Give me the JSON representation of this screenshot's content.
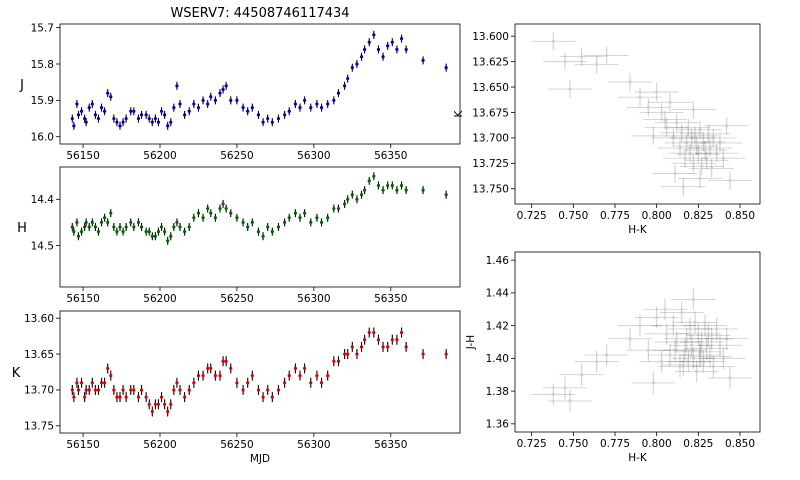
{
  "figure": {
    "title": "WSERV7: 44508746117434"
  },
  "colors": {
    "J": "#0000bb",
    "H": "#006400",
    "K": "#dd0000",
    "errbar": "#000000",
    "cc_point": "#000000"
  },
  "chart_data": [
    {
      "id": "j-lightcurve",
      "type": "scatter",
      "ylabel": "J",
      "xlabel": "",
      "xlim": [
        56135,
        56395
      ],
      "ylim": [
        16.02,
        15.69
      ],
      "y_inverted": true,
      "xticks": [
        56150,
        56200,
        56250,
        56300,
        56350
      ],
      "yticks": [
        15.7,
        15.8,
        15.9,
        16.0
      ],
      "xtick_labels": [
        "56150",
        "56200",
        "56250",
        "56300",
        "56350"
      ],
      "ytick_labels": [
        "15.7",
        "15.8",
        "15.9",
        "16.0"
      ],
      "color": "#0000bb",
      "points": []
    },
    {
      "id": "h-lightcurve",
      "type": "scatter",
      "ylabel": "H",
      "xlabel": "",
      "xlim": [
        56135,
        56395
      ],
      "ylim": [
        14.59,
        14.33
      ],
      "y_inverted": true,
      "xticks": [
        56150,
        56200,
        56250,
        56300,
        56350
      ],
      "yticks": [
        14.4,
        14.5
      ],
      "xtick_labels": [
        "56150",
        "56200",
        "56250",
        "56300",
        "56350"
      ],
      "ytick_labels": [
        "14.4",
        "14.5"
      ],
      "color": "#006400",
      "points": []
    },
    {
      "id": "k-lightcurve",
      "type": "scatter",
      "ylabel": "K",
      "xlabel": "MJD",
      "xlim": [
        56135,
        56395
      ],
      "ylim": [
        13.76,
        13.59
      ],
      "y_inverted": true,
      "xticks": [
        56150,
        56200,
        56250,
        56300,
        56350
      ],
      "yticks": [
        13.6,
        13.65,
        13.7,
        13.75
      ],
      "xtick_labels": [
        "56150",
        "56200",
        "56250",
        "56300",
        "56350"
      ],
      "ytick_labels": [
        "13.60",
        "13.65",
        "13.70",
        "13.75"
      ],
      "color": "#dd0000",
      "points": []
    },
    {
      "id": "k-vs-hk",
      "type": "scatter",
      "xlabel": "H-K",
      "ylabel": "K",
      "xlim": [
        0.715,
        0.862
      ],
      "ylim": [
        13.765,
        13.588
      ],
      "y_inverted": true,
      "xticks": [
        0.725,
        0.75,
        0.775,
        0.8,
        0.825,
        0.85
      ],
      "yticks": [
        13.6,
        13.625,
        13.65,
        13.675,
        13.7,
        13.725,
        13.75
      ],
      "xtick_labels": [
        "0.725",
        "0.750",
        "0.775",
        "0.800",
        "0.825",
        "0.850"
      ],
      "ytick_labels": [
        "13.600",
        "13.625",
        "13.650",
        "13.675",
        "13.700",
        "13.725",
        "13.750"
      ],
      "color": "#000000",
      "points": []
    },
    {
      "id": "jh-vs-hk",
      "type": "scatter",
      "xlabel": "H-K",
      "ylabel": "J-H",
      "xlim": [
        0.715,
        0.862
      ],
      "ylim": [
        1.355,
        1.465
      ],
      "y_inverted": false,
      "xticks": [
        0.725,
        0.75,
        0.775,
        0.8,
        0.825,
        0.85
      ],
      "yticks": [
        1.36,
        1.38,
        1.4,
        1.42,
        1.44,
        1.46
      ],
      "xtick_labels": [
        "0.725",
        "0.750",
        "0.775",
        "0.800",
        "0.825",
        "0.850"
      ],
      "ytick_labels": [
        "1.36",
        "1.38",
        "1.40",
        "1.42",
        "1.44",
        "1.46"
      ],
      "color": "#000000",
      "points": []
    }
  ],
  "lightcurve_points": [
    [
      56143,
      15.95,
      14.46,
      13.7
    ],
    [
      56144,
      15.97,
      14.47,
      13.71
    ],
    [
      56146,
      15.91,
      14.45,
      13.69
    ],
    [
      56147,
      15.94,
      14.48,
      13.7
    ],
    [
      56149,
      15.93,
      14.47,
      13.69
    ],
    [
      56151,
      15.95,
      14.46,
      13.71
    ],
    [
      56152,
      15.96,
      14.45,
      13.7
    ],
    [
      56154,
      15.92,
      14.46,
      13.7
    ],
    [
      56156,
      15.91,
      14.45,
      13.69
    ],
    [
      56158,
      15.94,
      14.46,
      13.7
    ],
    [
      56160,
      15.95,
      14.47,
      13.7
    ],
    [
      56162,
      15.92,
      14.45,
      13.69
    ],
    [
      56164,
      15.93,
      14.44,
      13.69
    ],
    [
      56166,
      15.88,
      14.45,
      13.67
    ],
    [
      56168,
      15.89,
      14.43,
      13.68
    ],
    [
      56170,
      15.95,
      14.46,
      13.7
    ],
    [
      56172,
      15.96,
      14.47,
      13.71
    ],
    [
      56174,
      15.97,
      14.46,
      13.71
    ],
    [
      56176,
      15.96,
      14.47,
      13.7
    ],
    [
      56178,
      15.95,
      14.46,
      13.71
    ],
    [
      56181,
      15.93,
      14.45,
      13.7
    ],
    [
      56183,
      15.93,
      14.46,
      13.7
    ],
    [
      56186,
      15.95,
      14.45,
      13.71
    ],
    [
      56188,
      15.94,
      14.46,
      13.7
    ],
    [
      56191,
      15.94,
      14.47,
      13.71
    ],
    [
      56193,
      15.95,
      14.47,
      13.72
    ],
    [
      56195,
      15.96,
      14.48,
      13.73
    ],
    [
      56197,
      15.95,
      14.48,
      13.72
    ],
    [
      56199,
      15.96,
      14.47,
      13.72
    ],
    [
      56201,
      15.93,
      14.46,
      13.71
    ],
    [
      56203,
      15.94,
      14.47,
      13.72
    ],
    [
      56205,
      15.97,
      14.49,
      13.73
    ],
    [
      56207,
      15.96,
      14.48,
      13.72
    ],
    [
      56209,
      15.92,
      14.46,
      13.7
    ],
    [
      56211,
      15.86,
      14.45,
      13.69
    ],
    [
      56213,
      15.91,
      14.46,
      13.7
    ],
    [
      56216,
      15.94,
      14.47,
      13.71
    ],
    [
      56219,
      15.93,
      14.46,
      13.7
    ],
    [
      56222,
      15.91,
      14.44,
      13.69
    ],
    [
      56225,
      15.92,
      14.43,
      13.68
    ],
    [
      56228,
      15.9,
      14.44,
      13.68
    ],
    [
      56231,
      15.91,
      14.42,
      13.67
    ],
    [
      56233,
      15.89,
      14.43,
      13.67
    ],
    [
      56236,
      15.9,
      14.44,
      13.68
    ],
    [
      56239,
      15.88,
      14.42,
      13.68
    ],
    [
      56241,
      15.87,
      14.41,
      13.66
    ],
    [
      56243,
      15.86,
      14.42,
      13.66
    ],
    [
      56246,
      15.9,
      14.43,
      13.67
    ],
    [
      56250,
      15.9,
      14.44,
      13.69
    ],
    [
      56254,
      15.92,
      14.45,
      13.7
    ],
    [
      56257,
      15.93,
      14.46,
      13.69
    ],
    [
      56260,
      15.92,
      14.45,
      13.68
    ],
    [
      56264,
      15.94,
      14.47,
      13.7
    ],
    [
      56267,
      15.96,
      14.48,
      13.71
    ],
    [
      56270,
      15.95,
      14.46,
      13.7
    ],
    [
      56273,
      15.96,
      14.47,
      13.71
    ],
    [
      56277,
      15.95,
      14.46,
      13.7
    ],
    [
      56281,
      15.94,
      14.45,
      13.69
    ],
    [
      56284,
      15.93,
      14.44,
      13.68
    ],
    [
      56288,
      15.91,
      14.43,
      13.67
    ],
    [
      56291,
      15.92,
      14.44,
      13.68
    ],
    [
      56294,
      15.9,
      14.43,
      13.67
    ],
    [
      56298,
      15.92,
      14.45,
      13.69
    ],
    [
      56302,
      15.91,
      14.44,
      13.68
    ],
    [
      56305,
      15.92,
      14.45,
      13.69
    ],
    [
      56309,
      15.91,
      14.44,
      13.68
    ],
    [
      56313,
      15.9,
      14.42,
      13.66
    ],
    [
      56316,
      15.88,
      14.42,
      13.66
    ],
    [
      56320,
      15.86,
      14.41,
      13.65
    ],
    [
      56322,
      15.84,
      14.4,
      13.65
    ],
    [
      56325,
      15.81,
      14.39,
      13.64
    ],
    [
      56328,
      15.8,
      14.4,
      13.65
    ],
    [
      56331,
      15.78,
      14.39,
      13.64
    ],
    [
      56333,
      15.76,
      14.38,
      13.63
    ],
    [
      56336,
      15.74,
      14.36,
      13.62
    ],
    [
      56339,
      15.72,
      14.35,
      13.62
    ],
    [
      56342,
      15.76,
      14.37,
      13.63
    ],
    [
      56345,
      15.78,
      14.38,
      13.64
    ],
    [
      56348,
      15.75,
      14.37,
      13.64
    ],
    [
      56351,
      15.74,
      14.37,
      13.63
    ],
    [
      56354,
      15.76,
      14.38,
      13.63
    ],
    [
      56357,
      15.73,
      14.37,
      13.62
    ],
    [
      56360,
      15.76,
      14.38,
      13.64
    ],
    [
      56371,
      15.79,
      14.38,
      13.65
    ],
    [
      56386,
      15.81,
      14.39,
      13.65
    ]
  ],
  "color_color_points": [
    [
      0.738,
      13.605,
      1.378
    ],
    [
      0.745,
      13.625,
      1.382
    ],
    [
      0.748,
      13.652,
      1.374
    ],
    [
      0.755,
      13.62,
      1.39
    ],
    [
      0.764,
      13.628,
      1.398
    ],
    [
      0.77,
      13.619,
      1.402
    ],
    [
      0.784,
      13.645,
      1.412
    ],
    [
      0.79,
      13.66,
      1.42
    ],
    [
      0.795,
      13.67,
      1.405
    ],
    [
      0.8,
      13.655,
      1.425
    ],
    [
      0.803,
      13.675,
      1.398
    ],
    [
      0.806,
      13.69,
      1.415
    ],
    [
      0.808,
      13.665,
      1.402
    ],
    [
      0.81,
      13.7,
      1.42
    ],
    [
      0.812,
      13.685,
      1.41
    ],
    [
      0.814,
      13.71,
      1.395
    ],
    [
      0.815,
      13.695,
      1.428
    ],
    [
      0.817,
      13.72,
      1.405
    ],
    [
      0.818,
      13.705,
      1.412
    ],
    [
      0.819,
      13.69,
      1.398
    ],
    [
      0.82,
      13.715,
      1.418
    ],
    [
      0.821,
      13.7,
      1.408
    ],
    [
      0.822,
      13.725,
      1.4
    ],
    [
      0.823,
      13.698,
      1.422
    ],
    [
      0.824,
      13.708,
      1.392
    ],
    [
      0.825,
      13.716,
      1.415
    ],
    [
      0.826,
      13.692,
      1.404
    ],
    [
      0.827,
      13.728,
      1.41
    ],
    [
      0.828,
      13.704,
      1.398
    ],
    [
      0.829,
      13.712,
      1.42
    ],
    [
      0.83,
      13.722,
      1.406
    ],
    [
      0.831,
      13.696,
      1.414
    ],
    [
      0.832,
      13.71,
      1.401
    ],
    [
      0.833,
      13.73,
      1.412
    ],
    [
      0.834,
      13.7,
      1.395
    ],
    [
      0.836,
      13.715,
      1.418
    ],
    [
      0.838,
      13.705,
      1.408
    ],
    [
      0.84,
      13.72,
      1.4
    ],
    [
      0.842,
      13.688,
      1.412
    ],
    [
      0.844,
      13.742,
      1.388
    ],
    [
      0.811,
      13.735,
      1.405
    ],
    [
      0.816,
      13.748,
      1.396
    ],
    [
      0.826,
      13.74,
      1.402
    ],
    [
      0.805,
      13.682,
      1.43
    ],
    [
      0.798,
      13.698,
      1.385
    ],
    [
      0.822,
      13.672,
      1.436
    ]
  ]
}
